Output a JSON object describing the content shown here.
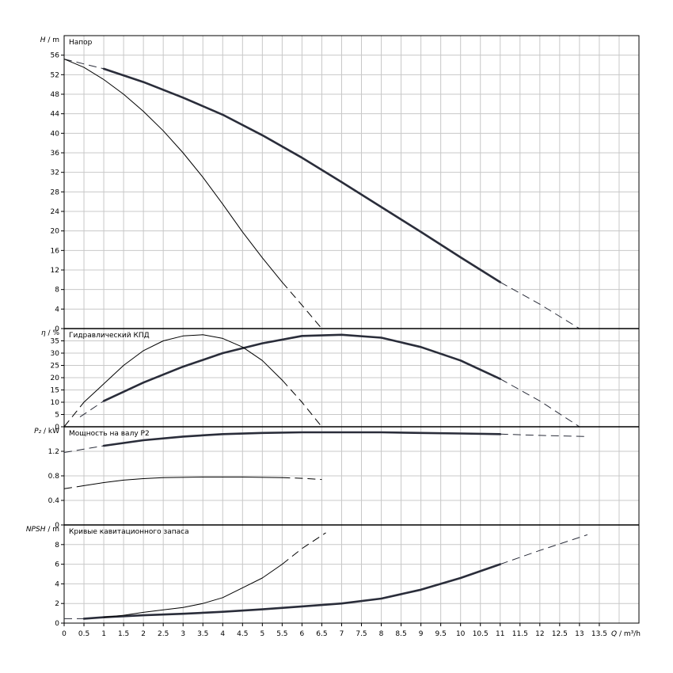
{
  "chart_data": {
    "type": "line",
    "x_label_main": "Q",
    "x_label_unit": " / m³/h",
    "xlim": [
      0,
      14.5
    ],
    "xticks": [
      "0",
      "0.5",
      "1",
      "1.5",
      "2",
      "2.5",
      "3",
      "3.5",
      "4",
      "4.5",
      "5",
      "5.5",
      "6",
      "6.5",
      "7",
      "7.5",
      "8",
      "8.5",
      "9",
      "9.5",
      "10",
      "10.5",
      "11",
      "11.5",
      "12",
      "12.5",
      "13",
      "13.5"
    ],
    "colors": {
      "grid": "#c8c8c8",
      "frame": "#000000",
      "thick_curve": "#2a2d3a",
      "thin_curve": "#000000"
    },
    "panels": [
      {
        "id": "head",
        "title": "Напор",
        "ylabel_main": "H",
        "ylabel_unit": " / m",
        "ylim": [
          0,
          60
        ],
        "yticks": [
          "0",
          "4",
          "8",
          "12",
          "16",
          "20",
          "24",
          "28",
          "32",
          "36",
          "40",
          "44",
          "48",
          "52",
          "56"
        ],
        "series": [
          {
            "style": "thick",
            "dash_left": [
              [
                0,
                55.2
              ],
              [
                1,
                53.2
              ]
            ],
            "solid": [
              [
                1,
                53.2
              ],
              [
                2,
                50.5
              ],
              [
                3,
                47.3
              ],
              [
                4,
                43.8
              ],
              [
                5,
                39.6
              ],
              [
                6,
                35.0
              ],
              [
                7,
                30.0
              ],
              [
                8,
                24.9
              ],
              [
                9,
                19.8
              ],
              [
                10,
                14.6
              ],
              [
                11,
                9.5
              ]
            ],
            "dash_right": [
              [
                11,
                9.5
              ],
              [
                12,
                5.0
              ],
              [
                13,
                0
              ]
            ]
          },
          {
            "style": "thin",
            "dash_left": [],
            "solid": [
              [
                0,
                55.2
              ],
              [
                0.5,
                53.5
              ],
              [
                1,
                51.0
              ],
              [
                1.5,
                48.0
              ],
              [
                2,
                44.5
              ],
              [
                2.5,
                40.5
              ],
              [
                3,
                36.0
              ],
              [
                3.5,
                31.0
              ],
              [
                4,
                25.5
              ],
              [
                4.5,
                19.8
              ],
              [
                5,
                14.5
              ],
              [
                5.5,
                9.5
              ]
            ],
            "dash_right": [
              [
                5.5,
                9.5
              ],
              [
                6,
                4.8
              ],
              [
                6.5,
                0
              ]
            ]
          }
        ]
      },
      {
        "id": "efficiency",
        "title": "Гидравлический КПД",
        "ylabel_main": "η",
        "ylabel_unit": " / %",
        "ylim": [
          0,
          40
        ],
        "yticks": [
          "0",
          "5",
          "10",
          "15",
          "20",
          "25",
          "30",
          "35"
        ],
        "series": [
          {
            "style": "thick",
            "dash_left": [
              [
                0.4,
                4
              ],
              [
                1,
                10.5
              ]
            ],
            "solid": [
              [
                1,
                10.5
              ],
              [
                2,
                18
              ],
              [
                3,
                24.5
              ],
              [
                4,
                30
              ],
              [
                5,
                34
              ],
              [
                6,
                37
              ],
              [
                7,
                37.5
              ],
              [
                8,
                36.3
              ],
              [
                9,
                32.5
              ],
              [
                10,
                27
              ],
              [
                11,
                19.5
              ]
            ],
            "dash_right": [
              [
                11,
                19.5
              ],
              [
                12,
                10.5
              ],
              [
                13,
                0
              ]
            ]
          },
          {
            "style": "thin",
            "dash_left": [
              [
                0,
                0
              ],
              [
                0.5,
                10
              ]
            ],
            "solid": [
              [
                0.5,
                10
              ],
              [
                1,
                17.5
              ],
              [
                1.5,
                25
              ],
              [
                2,
                31
              ],
              [
                2.5,
                35
              ],
              [
                3,
                37
              ],
              [
                3.5,
                37.5
              ],
              [
                4,
                36
              ],
              [
                4.5,
                32.5
              ],
              [
                5,
                27
              ],
              [
                5.5,
                19
              ]
            ],
            "dash_right": [
              [
                5.5,
                19
              ],
              [
                6,
                10
              ],
              [
                6.5,
                0
              ]
            ]
          }
        ]
      },
      {
        "id": "power",
        "title": "Мощность на валу P2",
        "ylabel_main": "P₂",
        "ylabel_unit": " / kW",
        "ylim": [
          0,
          1.6
        ],
        "yticks": [
          "0",
          "0.4",
          "0.8",
          "1.2"
        ],
        "series": [
          {
            "style": "thick",
            "dash_left": [
              [
                0,
                1.18
              ],
              [
                1,
                1.29
              ]
            ],
            "solid": [
              [
                1,
                1.29
              ],
              [
                2,
                1.38
              ],
              [
                3,
                1.44
              ],
              [
                4,
                1.48
              ],
              [
                5,
                1.5
              ],
              [
                6,
                1.51
              ],
              [
                7,
                1.51
              ],
              [
                8,
                1.51
              ],
              [
                9,
                1.5
              ],
              [
                10,
                1.49
              ],
              [
                11,
                1.48
              ]
            ],
            "dash_right": [
              [
                11,
                1.48
              ],
              [
                12,
                1.46
              ],
              [
                13.2,
                1.44
              ]
            ]
          },
          {
            "style": "thin",
            "dash_left": [
              [
                0,
                0.59
              ],
              [
                0.5,
                0.64
              ]
            ],
            "solid": [
              [
                0.5,
                0.64
              ],
              [
                1,
                0.69
              ],
              [
                1.5,
                0.73
              ],
              [
                2,
                0.755
              ],
              [
                2.5,
                0.77
              ],
              [
                3,
                0.775
              ],
              [
                3.5,
                0.78
              ],
              [
                4,
                0.78
              ],
              [
                4.5,
                0.78
              ],
              [
                5,
                0.775
              ],
              [
                5.5,
                0.77
              ]
            ],
            "dash_right": [
              [
                5.5,
                0.77
              ],
              [
                6,
                0.76
              ],
              [
                6.5,
                0.74
              ]
            ]
          }
        ]
      },
      {
        "id": "npsh",
        "title": "Кривые кавитационного запаса",
        "ylabel_main": "NPSH",
        "ylabel_unit": " / m",
        "ylim": [
          0,
          10
        ],
        "yticks": [
          "0",
          "2",
          "4",
          "6",
          "8"
        ],
        "series": [
          {
            "style": "thick",
            "dash_left": [
              [
                0,
                0.45
              ],
              [
                0.5,
                0.45
              ]
            ],
            "solid": [
              [
                0.5,
                0.45
              ],
              [
                1,
                0.6
              ],
              [
                2,
                0.8
              ],
              [
                3,
                0.95
              ],
              [
                4,
                1.15
              ],
              [
                5,
                1.4
              ],
              [
                6,
                1.7
              ],
              [
                7,
                2.0
              ],
              [
                8,
                2.5
              ],
              [
                9,
                3.4
              ],
              [
                10,
                4.6
              ],
              [
                11,
                6.0
              ]
            ],
            "dash_right": [
              [
                11,
                6.0
              ],
              [
                12,
                7.4
              ],
              [
                13.2,
                9.0
              ]
            ]
          },
          {
            "style": "thin",
            "dash_left": [],
            "solid": [
              [
                1,
                0.6
              ],
              [
                1.5,
                0.8
              ],
              [
                2,
                1.1
              ],
              [
                2.5,
                1.35
              ],
              [
                3,
                1.6
              ],
              [
                3.5,
                2.0
              ],
              [
                4,
                2.6
              ],
              [
                4.5,
                3.6
              ],
              [
                5,
                4.6
              ],
              [
                5.5,
                6.0
              ]
            ],
            "dash_right": [
              [
                5.5,
                6.0
              ],
              [
                6,
                7.6
              ],
              [
                6.6,
                9.2
              ]
            ]
          }
        ]
      }
    ]
  }
}
